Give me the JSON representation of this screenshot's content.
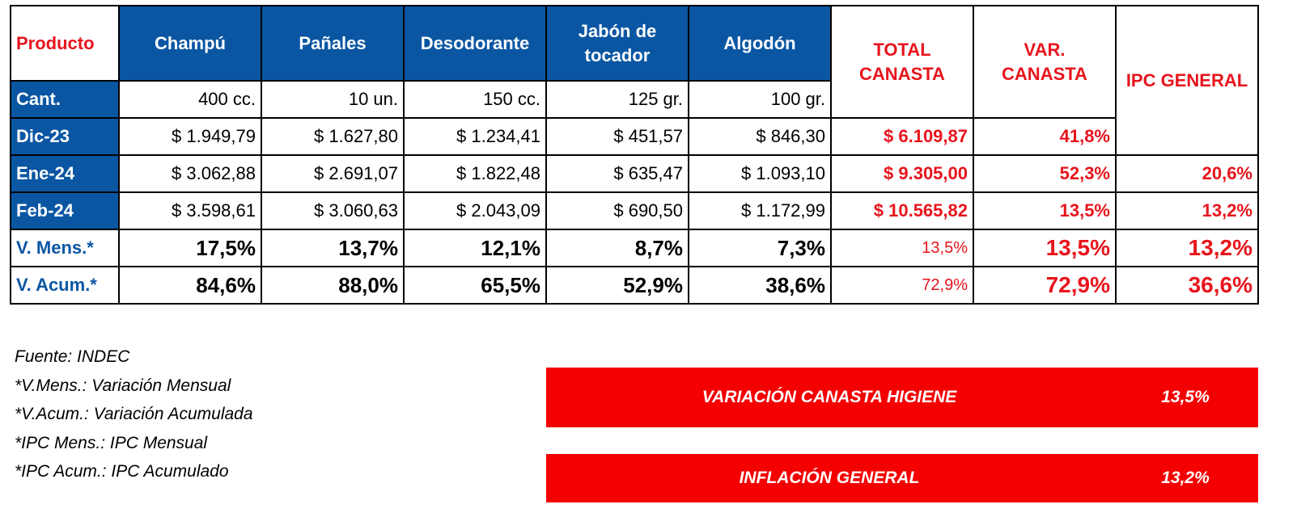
{
  "table": {
    "header": {
      "producto": "Producto",
      "products": [
        "Champú",
        "Pañales",
        "Desodorante",
        "Jabón de tocador",
        "Algodón"
      ],
      "total": "TOTAL CANASTA",
      "var": "VAR. CANASTA",
      "ipc": "IPC GENERAL"
    },
    "cant": {
      "label": "Cant.",
      "values": [
        "400 cc.",
        "10 un.",
        "150 cc.",
        "125 gr.",
        "100 gr."
      ]
    },
    "rows": [
      {
        "label": "Dic-23",
        "values": [
          "$ 1.949,79",
          "$ 1.627,80",
          "$ 1.234,41",
          "$ 451,57",
          "$ 846,30"
        ],
        "total": "$ 6.109,87",
        "var": "41,8%",
        "ipc": ""
      },
      {
        "label": "Ene-24",
        "values": [
          "$ 3.062,88",
          "$ 2.691,07",
          "$ 1.822,48",
          "$ 635,47",
          "$ 1.093,10"
        ],
        "total": "$ 9.305,00",
        "var": "52,3%",
        "ipc": "20,6%"
      },
      {
        "label": "Feb-24",
        "values": [
          "$ 3.598,61",
          "$ 3.060,63",
          "$ 2.043,09",
          "$ 690,50",
          "$ 1.172,99"
        ],
        "total": "$ 10.565,82",
        "var": "13,5%",
        "ipc": "13,2%"
      }
    ],
    "mens": {
      "label": "V. Mens.*",
      "values": [
        "17,5%",
        "13,7%",
        "12,1%",
        "8,7%",
        "7,3%"
      ],
      "total": "13,5%",
      "var": "13,5%",
      "ipc": "13,2%"
    },
    "acum": {
      "label": "V. Acum.*",
      "values": [
        "84,6%",
        "88,0%",
        "65,5%",
        "52,9%",
        "38,6%"
      ],
      "total": "72,9%",
      "var": "72,9%",
      "ipc": "36,6%"
    }
  },
  "notes": [
    "Fuente: INDEC",
    "*V.Mens.: Variación Mensual",
    "*V.Acum.: Variación Acumulada",
    "*IPC Mens.: IPC Mensual",
    "*IPC Acum.: IPC Acumulado"
  ],
  "banners": [
    {
      "label": "VARIACIÓN CANASTA HIGIENE",
      "value": "13,5%"
    },
    {
      "label": "INFLACIÓN GENERAL",
      "value": "13,2%"
    }
  ],
  "colors": {
    "blue": "#0a56a3",
    "red": "#e8141c",
    "banner_red": "#f40000"
  }
}
